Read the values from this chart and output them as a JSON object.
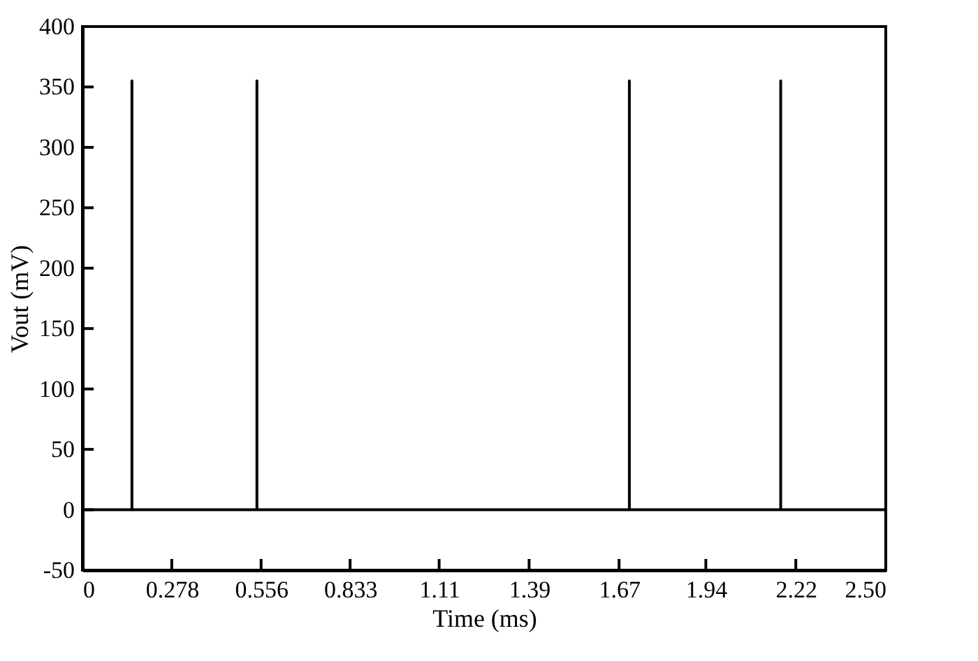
{
  "chart_data": {
    "type": "line",
    "xlabel": "Time (ms)",
    "ylabel": "Vout (mV)",
    "x": [
      0,
      0.154,
      0.154,
      0.154,
      0.543,
      0.543,
      0.543,
      1.702,
      1.702,
      1.702,
      2.173,
      2.173,
      2.173,
      2.5
    ],
    "series": [
      {
        "color": "#000000",
        "values": [
          0,
          0,
          355,
          0,
          0,
          355,
          0,
          0,
          355,
          0,
          0,
          355,
          0,
          0
        ]
      }
    ],
    "xlim": [
      0,
      2.5
    ],
    "xticks": [
      0,
      0.278,
      0.556,
      0.833,
      1.11,
      1.39,
      1.67,
      1.94,
      2.22,
      {
        "value": 2.5,
        "label": "2.50"
      }
    ],
    "ylim": [
      -50,
      400
    ],
    "yticks": [
      -50,
      0,
      50,
      100,
      150,
      200,
      250,
      300,
      350,
      400
    ],
    "grid": false,
    "marker": "none",
    "line_style": "solid"
  }
}
